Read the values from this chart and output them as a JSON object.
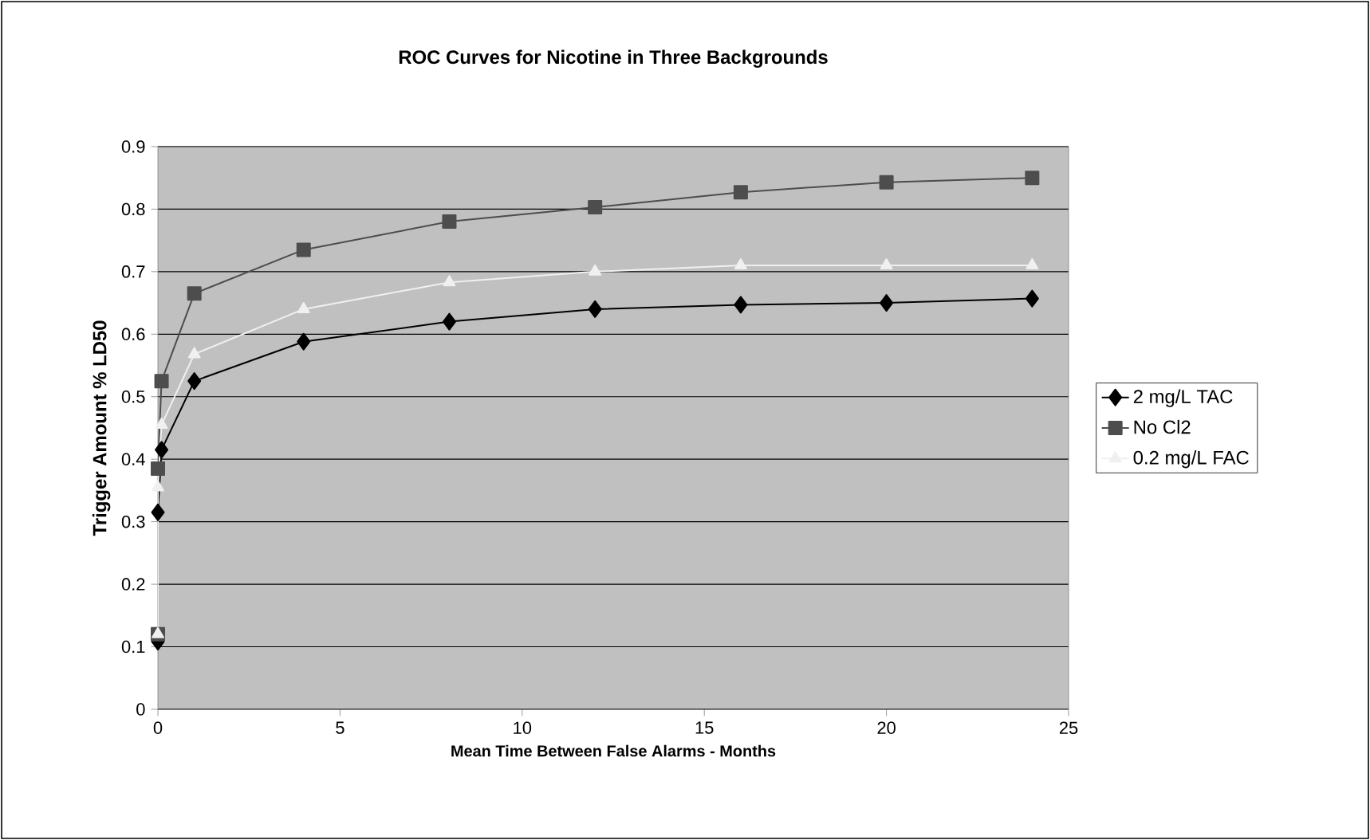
{
  "chart_data": {
    "type": "line",
    "title": "ROC Curves for Nicotine in Three Backgrounds",
    "xlabel": "Mean Time Between False Alarms - Months",
    "ylabel": "Trigger Amount % LD50",
    "x": [
      0,
      0,
      0.1,
      1,
      4,
      8,
      12,
      16,
      20,
      24
    ],
    "series": [
      {
        "name": "2 mg/L TAC",
        "color": "#000000",
        "marker": "diamond",
        "values": [
          0.108,
          0.315,
          0.415,
          0.525,
          0.588,
          0.62,
          0.64,
          0.647,
          0.65,
          0.657
        ]
      },
      {
        "name": "No Cl2",
        "color": "#4d4d4d",
        "marker": "square",
        "values": [
          0.12,
          0.385,
          0.525,
          0.665,
          0.735,
          0.78,
          0.803,
          0.827,
          0.843,
          0.85
        ]
      },
      {
        "name": "0.2 mg/L FAC",
        "color": "#f0f0f0",
        "marker": "triangle",
        "values": [
          0.12,
          0.355,
          0.455,
          0.568,
          0.64,
          0.683,
          0.7,
          0.71,
          0.71,
          0.71
        ]
      }
    ],
    "xlim": [
      0,
      25
    ],
    "xticks": [
      0,
      5,
      10,
      15,
      20,
      25
    ],
    "ylim": [
      0,
      0.9
    ],
    "yticks": [
      0,
      0.1,
      0.2,
      0.3,
      0.4,
      0.5,
      0.6,
      0.7,
      0.8,
      0.9
    ],
    "grid": "y",
    "legend": "right"
  }
}
